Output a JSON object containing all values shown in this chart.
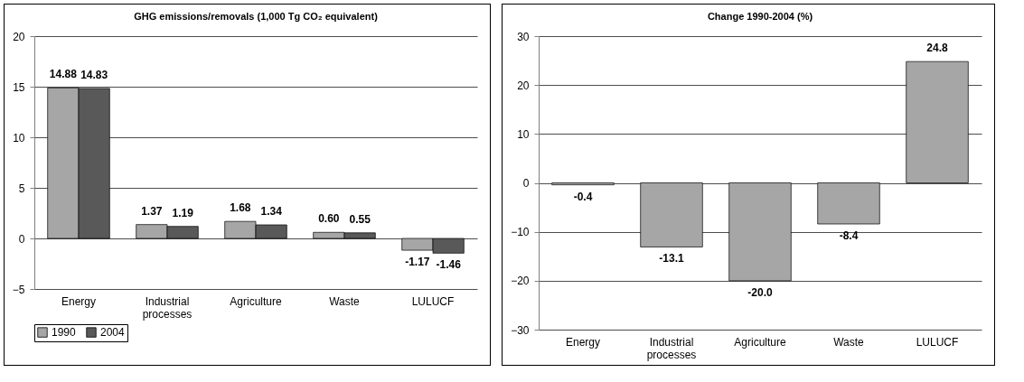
{
  "chart_data": [
    {
      "type": "bar",
      "title": "GHG emissions/removals (1,000 Tg CO₂ equivalent)",
      "categories": [
        "Energy",
        "Industrial processes",
        "Agriculture",
        "Waste",
        "LULUCF"
      ],
      "series": [
        {
          "name": "1990",
          "color": "#a6a6a6",
          "values": [
            14.88,
            1.37,
            1.68,
            0.6,
            -1.17
          ],
          "value_labels": [
            "14.88",
            "1.37",
            "1.68",
            "0.60",
            "-1.17"
          ]
        },
        {
          "name": "2004",
          "color": "#595959",
          "values": [
            14.83,
            1.19,
            1.34,
            0.55,
            -1.46
          ],
          "value_labels": [
            "14.83",
            "1.19",
            "1.34",
            "0.55",
            "-1.46"
          ]
        }
      ],
      "ylim": [
        -5,
        20
      ],
      "yticks": [
        -5,
        0,
        5,
        10,
        15,
        20
      ],
      "grid": "y",
      "legend": "bottom"
    },
    {
      "type": "bar",
      "title": "Change 1990-2004 (%)",
      "categories": [
        "Energy",
        "Industrial processes",
        "Agriculture",
        "Waste",
        "LULUCF"
      ],
      "values": [
        -0.4,
        -13.1,
        -20.0,
        -8.4,
        24.8
      ],
      "value_labels": [
        "-0.4",
        "-13.1",
        "-20.0",
        "-8.4",
        "24.8"
      ],
      "color": "#a6a6a6",
      "ylim": [
        -30,
        30
      ],
      "yticks": [
        -30,
        -20,
        -10,
        0,
        10,
        20,
        30
      ],
      "grid": "y"
    }
  ]
}
